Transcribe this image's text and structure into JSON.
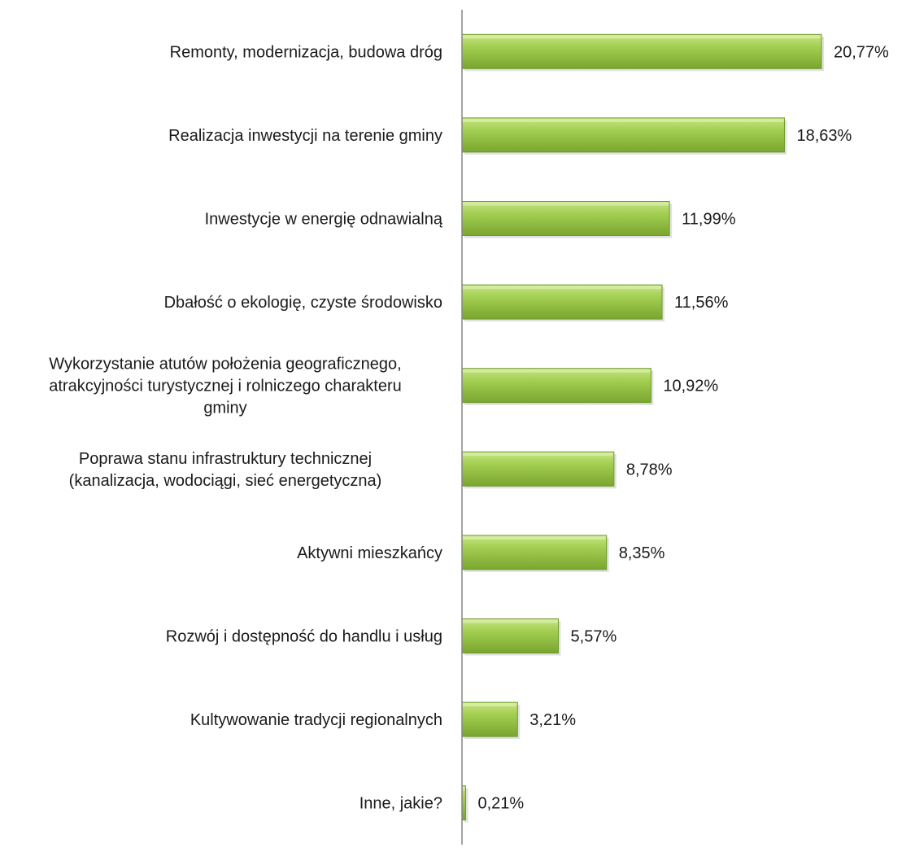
{
  "chart_data": {
    "type": "bar",
    "orientation": "horizontal",
    "title": "",
    "xlabel": "",
    "ylabel": "",
    "categories": [
      "Remonty, modernizacja, budowa dróg",
      "Realizacja inwestycji na terenie gminy",
      "Inwestycje w energię odnawialną",
      "Dbałość o ekologię, czyste środowisko",
      "Wykorzystanie atutów położenia geograficznego, atrakcyjności turystycznej i rolniczego charakteru gminy",
      "Poprawa stanu infrastruktury technicznej (kanalizacja, wodociągi, sieć energetyczna)",
      "Aktywni mieszkańcy",
      "Rozwój i dostępność do handlu i usług",
      "Kultywowanie tradycji regionalnych",
      "Inne, jakie?"
    ],
    "label_lines": [
      [
        "Remonty, modernizacja, budowa dróg"
      ],
      [
        "Realizacja inwestycji na terenie gminy"
      ],
      [
        "Inwestycje w energię odnawialną"
      ],
      [
        "Dbałość o ekologię, czyste środowisko"
      ],
      [
        "Wykorzystanie atutów położenia geograficznego,",
        "atrakcyjności turystycznej i rolniczego charakteru",
        "gminy"
      ],
      [
        "Poprawa stanu infrastruktury technicznej",
        "(kanalizacja, wodociągi, sieć energetyczna)"
      ],
      [
        "Aktywni mieszkańcy"
      ],
      [
        "Rozwój i dostępność do handlu i usług"
      ],
      [
        "Kultywowanie tradycji regionalnych"
      ],
      [
        "Inne, jakie?"
      ]
    ],
    "values": [
      20.77,
      18.63,
      11.99,
      11.56,
      10.92,
      8.78,
      8.35,
      5.57,
      3.21,
      0.21
    ],
    "value_labels": [
      "20,77%",
      "18,63%",
      "11,99%",
      "11,56%",
      "10,92%",
      "8,78%",
      "8,35%",
      "5,57%",
      "3,21%",
      "0,21%"
    ],
    "xlim": [
      0,
      24
    ],
    "grid": false,
    "legend": "none",
    "colors": {
      "bar_light": "#b9dc6e",
      "bar_mid": "#93c13f",
      "bar_dark": "#6e9a2a",
      "axis": "#868686"
    }
  }
}
